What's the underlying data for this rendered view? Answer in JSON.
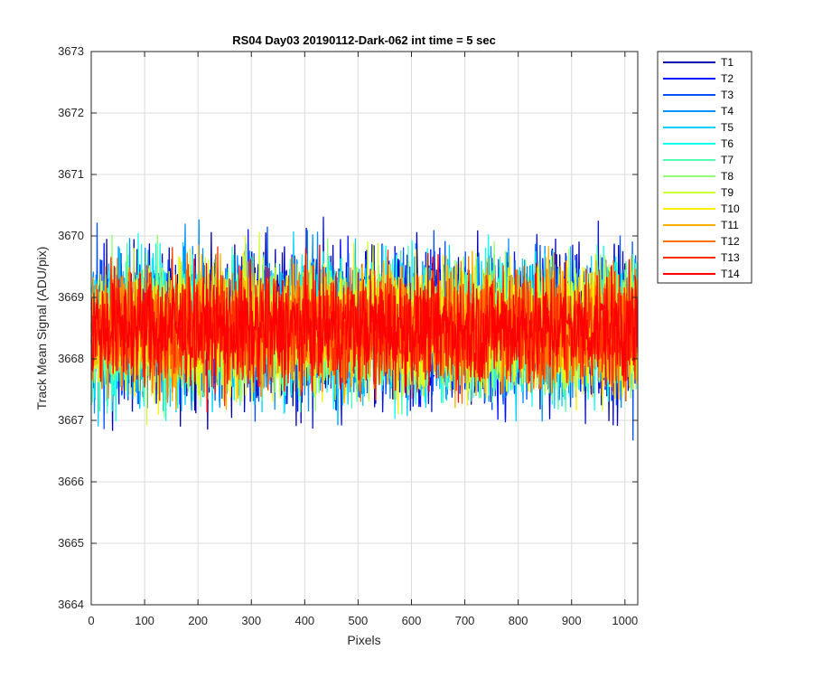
{
  "chart_data": {
    "type": "line",
    "title": "RS04 Day03 20190112-Dark-062 int time = 5 sec",
    "xlabel": "Pixels",
    "ylabel": "Track Mean Signal (ADU/pix)",
    "xlim": [
      0,
      1024
    ],
    "ylim": [
      3664,
      3673
    ],
    "xticks": [
      0,
      100,
      200,
      300,
      400,
      500,
      600,
      700,
      800,
      900,
      1000
    ],
    "yticks": [
      3664,
      3665,
      3666,
      3667,
      3668,
      3669,
      3670,
      3671,
      3672,
      3673
    ],
    "grid": true,
    "legend_position": "outside-top-right",
    "n_points_per_series": 1024,
    "approx_center": 3668.5,
    "approx_spread_ADU": 1.0,
    "series": [
      {
        "name": "T1",
        "color": "#0000AF"
      },
      {
        "name": "T2",
        "color": "#0010FF"
      },
      {
        "name": "T3",
        "color": "#0050FF"
      },
      {
        "name": "T4",
        "color": "#0090FF"
      },
      {
        "name": "T5",
        "color": "#00CFFF"
      },
      {
        "name": "T6",
        "color": "#10FFEF"
      },
      {
        "name": "T7",
        "color": "#50FFAF"
      },
      {
        "name": "T8",
        "color": "#90FF6F"
      },
      {
        "name": "T9",
        "color": "#CFFF30"
      },
      {
        "name": "T10",
        "color": "#FFEF00"
      },
      {
        "name": "T11",
        "color": "#FFAF00"
      },
      {
        "name": "T12",
        "color": "#FF7000"
      },
      {
        "name": "T13",
        "color": "#FF3000"
      },
      {
        "name": "T14",
        "color": "#FF0000"
      }
    ]
  }
}
